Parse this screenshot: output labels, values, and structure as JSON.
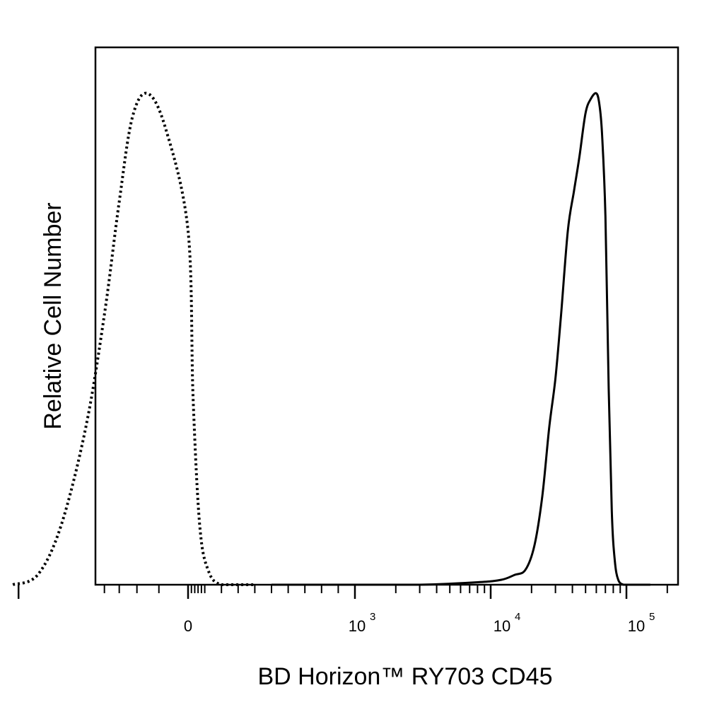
{
  "chart_data": {
    "type": "line",
    "title": "",
    "xlabel": "BD Horizon™ RY703 CD45",
    "ylabel": "Relative Cell Number",
    "x_scale": "biexponential",
    "x_ticks": [
      {
        "base": "0",
        "exp": ""
      },
      {
        "base": "10",
        "exp": "3"
      },
      {
        "base": "10",
        "exp": "4"
      },
      {
        "base": "10",
        "exp": "5"
      }
    ],
    "y_ticks": [],
    "grid": false,
    "legend": "none",
    "series": [
      {
        "style": "dotted",
        "x": [
          -300,
          -220,
          -160,
          -110,
          -80,
          -60,
          -45,
          -30,
          -15,
          0,
          30,
          70,
          120,
          200,
          400
        ],
        "y": [
          0.0,
          0.02,
          0.12,
          0.32,
          0.55,
          0.78,
          0.95,
          1.0,
          0.93,
          0.72,
          0.38,
          0.12,
          0.03,
          0.0,
          0.0
        ]
      },
      {
        "style": "solid",
        "x": [
          500,
          1000,
          3000,
          8000,
          12000,
          15000,
          18000,
          21000,
          24000,
          27000,
          30000,
          33000,
          37000,
          41000,
          45000,
          50000,
          55000,
          60000,
          63000,
          66000,
          70000,
          74000,
          78000,
          82000,
          87000,
          95000,
          105000,
          120000,
          150000
        ],
        "y": [
          0.0,
          0.0,
          0.0,
          0.005,
          0.01,
          0.02,
          0.03,
          0.08,
          0.18,
          0.32,
          0.42,
          0.55,
          0.72,
          0.8,
          0.87,
          0.96,
          0.99,
          1.0,
          0.98,
          0.92,
          0.75,
          0.4,
          0.15,
          0.05,
          0.01,
          0.0,
          0.0,
          0.0,
          0.0
        ]
      }
    ],
    "colors": {
      "line": "#000000",
      "frame": "#000000",
      "background": "#ffffff"
    }
  }
}
